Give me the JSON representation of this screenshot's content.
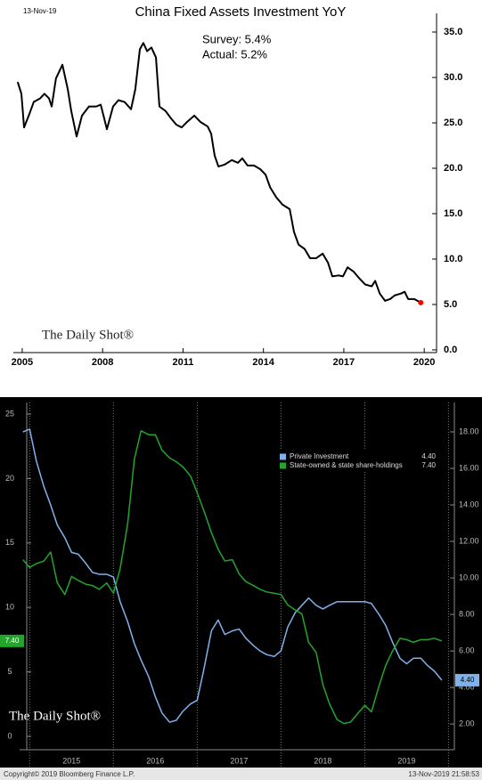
{
  "chart_data": [
    {
      "type": "line",
      "title": "China Fixed Assets Investment YoY",
      "date": "13-Nov-19",
      "annotations": [
        "Survey: 5.4%",
        "Actual:  5.2%"
      ],
      "watermark": "The Daily Shot®",
      "color": "#000000",
      "last_point_color": "#ff0000",
      "grid": false,
      "x": [
        2004.83,
        2004.97,
        2005.07,
        2005.27,
        2005.43,
        2005.67,
        2005.83,
        2006.0,
        2006.1,
        2006.26,
        2006.5,
        2006.7,
        2006.83,
        2007.03,
        2007.23,
        2007.49,
        2007.76,
        2007.93,
        2008.16,
        2008.39,
        2008.59,
        2008.82,
        2009.06,
        2009.22,
        2009.39,
        2009.52,
        2009.66,
        2009.82,
        2009.99,
        2010.12,
        2010.35,
        2010.55,
        2010.75,
        2010.95,
        2011.15,
        2011.42,
        2011.65,
        2011.92,
        2012.05,
        2012.18,
        2012.32,
        2012.55,
        2012.82,
        2013.05,
        2013.21,
        2013.41,
        2013.65,
        2013.88,
        2014.08,
        2014.25,
        2014.48,
        2014.71,
        2014.98,
        2015.14,
        2015.31,
        2015.54,
        2015.74,
        2015.97,
        2016.21,
        2016.41,
        2016.57,
        2016.81,
        2016.97,
        2017.14,
        2017.37,
        2017.57,
        2017.8,
        2018.04,
        2018.17,
        2018.34,
        2018.54,
        2018.73,
        2018.9,
        2019.13,
        2019.27,
        2019.4,
        2019.63,
        2019.87
      ],
      "values": [
        29.5,
        28.2,
        24.5,
        26,
        27.3,
        27.7,
        28.2,
        27.7,
        26.8,
        29.9,
        31.4,
        28.7,
        26.3,
        23.5,
        25.8,
        26.8,
        26.8,
        27,
        24.3,
        26.8,
        27.5,
        27.3,
        26.5,
        28.7,
        33.1,
        33.8,
        32.9,
        33.3,
        32.2,
        26.8,
        26.3,
        25.5,
        24.8,
        24.5,
        25.1,
        25.8,
        25.1,
        24.6,
        23.8,
        21.4,
        20.2,
        20.4,
        20.9,
        20.6,
        21.1,
        20.3,
        20.3,
        19.9,
        19.3,
        17.9,
        16.8,
        16,
        15.5,
        13,
        11.6,
        11.1,
        10.1,
        10.1,
        10.6,
        9.6,
        8.1,
        8.2,
        8.1,
        9.1,
        8.6,
        7.9,
        7.2,
        7,
        7.6,
        6.2,
        5.4,
        5.6,
        6,
        6.2,
        6.4,
        5.6,
        5.6,
        5.2
      ],
      "xlim": [
        2004.67,
        2020.46
      ],
      "xticks": [
        2005,
        2008,
        2011,
        2014,
        2017,
        2020
      ],
      "ylim": [
        -0.3,
        37.06
      ],
      "yticks": [
        {
          "value": 0,
          "label": "0.0"
        },
        {
          "value": 5,
          "label": "5.0"
        },
        {
          "value": 10,
          "label": "10.0"
        },
        {
          "value": 15,
          "label": "15.0"
        },
        {
          "value": 20,
          "label": "20.0"
        },
        {
          "value": 25,
          "label": "25.0"
        },
        {
          "value": 30,
          "label": "30.0"
        },
        {
          "value": 35,
          "label": "35.0"
        }
      ]
    },
    {
      "type": "line",
      "watermark": "The Daily Shot®",
      "grid": false,
      "year_dividers": true,
      "source": "Copyright© 2019 Bloomberg Finance L.P.",
      "timestamp": "13-Nov-2019 21:58:53",
      "x": [
        2014.92,
        2015.0,
        2015.08,
        2015.17,
        2015.25,
        2015.33,
        2015.42,
        2015.5,
        2015.58,
        2015.67,
        2015.75,
        2015.83,
        2015.92,
        2016.0,
        2016.08,
        2016.17,
        2016.25,
        2016.33,
        2016.42,
        2016.5,
        2016.58,
        2016.67,
        2016.75,
        2016.83,
        2016.92,
        2017.0,
        2017.08,
        2017.17,
        2017.25,
        2017.33,
        2017.42,
        2017.5,
        2017.58,
        2017.67,
        2017.75,
        2017.83,
        2017.92,
        2018.0,
        2018.08,
        2018.17,
        2018.25,
        2018.33,
        2018.42,
        2018.5,
        2018.58,
        2018.67,
        2018.75,
        2018.83,
        2018.92,
        2019.0,
        2019.08,
        2019.17,
        2019.25,
        2019.33,
        2019.42,
        2019.5,
        2019.58,
        2019.67,
        2019.75,
        2019.83,
        2019.92
      ],
      "series": [
        {
          "name": "Private Investment",
          "color": "#7fb2ea",
          "axis": "y2",
          "values": [
            18.0,
            18.15,
            16.4,
            15.0,
            14.0,
            12.9,
            12.2,
            11.4,
            11.3,
            10.8,
            10.3,
            10.2,
            10.2,
            10.05,
            8.7,
            7.6,
            6.4,
            5.5,
            4.6,
            3.5,
            2.6,
            2.1,
            2.2,
            2.7,
            3.1,
            3.3,
            5.0,
            7.1,
            7.7,
            6.9,
            7.1,
            7.2,
            6.7,
            6.3,
            6.0,
            5.8,
            5.7,
            6.0,
            7.3,
            8.1,
            8.5,
            8.9,
            8.5,
            8.3,
            8.5,
            8.7,
            8.7,
            8.7,
            8.7,
            8.7,
            8.6,
            8.0,
            7.4,
            6.5,
            5.6,
            5.3,
            5.6,
            5.6,
            5.2,
            4.9,
            4.4
          ],
          "value_labels": [
            null,
            null,
            null,
            null,
            null,
            null,
            null,
            null,
            null,
            null,
            null,
            null,
            null,
            null,
            null,
            null,
            null,
            null,
            null,
            null,
            null,
            null,
            null,
            null,
            null,
            null,
            null,
            null,
            null,
            null,
            null,
            null,
            null,
            null,
            null,
            null,
            null,
            null,
            null,
            null,
            null,
            null,
            null,
            null,
            null,
            null,
            null,
            null,
            null,
            null,
            null,
            null,
            null,
            null,
            null,
            null,
            null,
            null,
            null,
            null,
            "4.40"
          ]
        },
        {
          "name": "State-owned & state share-holdings",
          "color": "#22a52a",
          "axis": "y",
          "values": [
            13.7,
            13.1,
            13.4,
            13.6,
            14.3,
            11.9,
            11.0,
            12.4,
            12.1,
            11.8,
            11.7,
            11.4,
            11.9,
            11.1,
            13.0,
            16.5,
            21.5,
            23.7,
            23.4,
            23.4,
            22.2,
            21.6,
            21.3,
            20.9,
            20.2,
            18.9,
            17.5,
            15.8,
            14.5,
            13.6,
            13.7,
            12.6,
            12.0,
            11.7,
            11.4,
            11.2,
            11.1,
            11.0,
            10.2,
            9.8,
            9.5,
            7.3,
            6.5,
            4.0,
            2.5,
            1.3,
            1.0,
            1.1,
            1.8,
            2.4,
            1.9,
            3.9,
            5.5,
            6.6,
            7.6,
            7.5,
            7.3,
            7.5,
            7.5,
            7.6,
            7.4
          ],
          "value_labels": [
            null,
            null,
            null,
            null,
            null,
            null,
            null,
            null,
            null,
            null,
            null,
            null,
            null,
            null,
            null,
            null,
            null,
            null,
            null,
            null,
            null,
            null,
            null,
            null,
            null,
            null,
            null,
            null,
            null,
            null,
            null,
            null,
            null,
            null,
            null,
            null,
            null,
            null,
            null,
            null,
            null,
            null,
            null,
            null,
            null,
            null,
            null,
            null,
            null,
            null,
            null,
            null,
            null,
            null,
            null,
            null,
            null,
            null,
            null,
            null,
            "7.40"
          ]
        }
      ],
      "xlim": [
        2014.88,
        2020.07
      ],
      "xticks": [
        {
          "value": 2015.5,
          "label": "2015"
        },
        {
          "value": 2016.5,
          "label": "2016"
        },
        {
          "value": 2017.5,
          "label": "2017"
        },
        {
          "value": 2018.5,
          "label": "2018"
        },
        {
          "value": 2019.5,
          "label": "2019"
        }
      ],
      "ylim": [
        -1.04,
        25.9
      ],
      "yticks": [
        0,
        5,
        10,
        15,
        20,
        25
      ],
      "y2lim": [
        0.59,
        19.61
      ],
      "y2ticks": [
        {
          "value": 2,
          "label": "2.00"
        },
        {
          "value": 4,
          "label": "4.00"
        },
        {
          "value": 6,
          "label": "6.00"
        },
        {
          "value": 8,
          "label": "8.00"
        },
        {
          "value": 10,
          "label": "10.00"
        },
        {
          "value": 12,
          "label": "12.00"
        },
        {
          "value": 14,
          "label": "14.00"
        },
        {
          "value": 16,
          "label": "16.00"
        },
        {
          "value": 18,
          "label": "18.00"
        }
      ]
    }
  ]
}
